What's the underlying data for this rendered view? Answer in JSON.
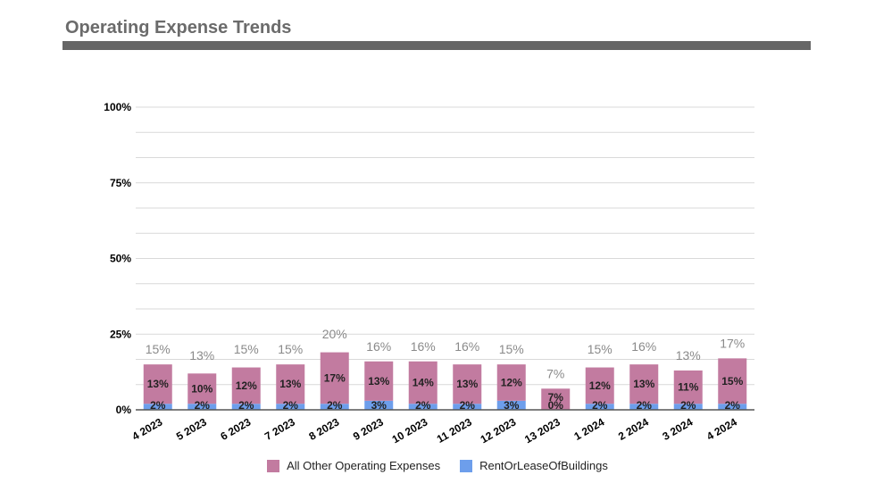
{
  "page": {
    "title": "Operating Expense Trends"
  },
  "colors": {
    "other": "#c27ba0",
    "rent": "#6d9eeb",
    "grid": "#d9d9d9",
    "axis": "#555555",
    "title_rule": "#666666"
  },
  "chart_data": {
    "type": "bar",
    "stacked": true,
    "title": "",
    "xlabel": "",
    "ylabel": "",
    "ylim": [
      0,
      100
    ],
    "yticks": [
      0,
      25,
      50,
      75,
      100
    ],
    "ytick_labels": [
      "0%",
      "25%",
      "50%",
      "75%",
      "100%"
    ],
    "grid": true,
    "legend_position": "bottom",
    "categories": [
      "4 2023",
      "5 2023",
      "6 2023",
      "7 2023",
      "8 2023",
      "9 2023",
      "10 2023",
      "11 2023",
      "12 2023",
      "13 2023",
      "1 2024",
      "2 2024",
      "3 2024",
      "4 2024"
    ],
    "series": [
      {
        "name": "RentOrLeaseOfBuildings",
        "values": [
          2,
          2,
          2,
          2,
          2,
          3,
          2,
          2,
          3,
          0,
          2,
          2,
          2,
          2
        ],
        "labels": [
          "2%",
          "2%",
          "2%",
          "2%",
          "2%",
          "3%",
          "2%",
          "2%",
          "3%",
          "0%",
          "2%",
          "2%",
          "2%",
          "2%"
        ]
      },
      {
        "name": "All Other Operating Expenses",
        "values": [
          13,
          10,
          12,
          13,
          17,
          13,
          14,
          13,
          12,
          7,
          12,
          13,
          11,
          15
        ],
        "labels": [
          "13%",
          "10%",
          "12%",
          "13%",
          "17%",
          "13%",
          "14%",
          "13%",
          "12%",
          "7%",
          "12%",
          "13%",
          "11%",
          "15%"
        ]
      }
    ],
    "totals": [
      15,
      13,
      15,
      15,
      20,
      16,
      16,
      16,
      15,
      7,
      15,
      16,
      13,
      17
    ],
    "total_labels": [
      "15%",
      "13%",
      "15%",
      "15%",
      "20%",
      "16%",
      "16%",
      "16%",
      "15%",
      "7%",
      "15%",
      "16%",
      "13%",
      "17%"
    ]
  },
  "legend": [
    {
      "label": "All Other Operating Expenses",
      "color": "#c27ba0"
    },
    {
      "label": "RentOrLeaseOfBuildings",
      "color": "#6d9eeb"
    }
  ]
}
